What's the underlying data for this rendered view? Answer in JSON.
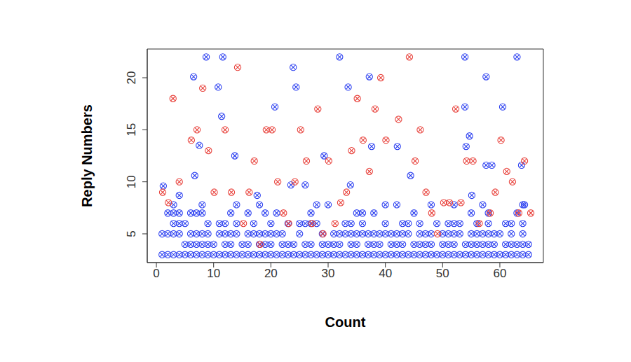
{
  "chart_data": {
    "type": "scatter",
    "x_label": "Count",
    "y_label": "Reply Numbers",
    "xlim": [
      -1.6,
      67.6
    ],
    "xticks": [
      0,
      10,
      20,
      30,
      40,
      50,
      60
    ],
    "ylim": [
      2.24,
      22.76
    ],
    "yticks": [
      5,
      10,
      15,
      20
    ],
    "grid": false,
    "marker": "circle_x",
    "series": [
      {
        "color": "#2b3ff0",
        "x": [
          1,
          2,
          3,
          4,
          5,
          6,
          7,
          8,
          9,
          10,
          11,
          12,
          13,
          14,
          15,
          16,
          17,
          18,
          19,
          20,
          21,
          22,
          23,
          24,
          25,
          26,
          27,
          28,
          29,
          30,
          31,
          32,
          33,
          34,
          35,
          36,
          37,
          38,
          39,
          40,
          41,
          42,
          43,
          44,
          45,
          46,
          47,
          48,
          49,
          50,
          51,
          52,
          53,
          54,
          55,
          56,
          57,
          58,
          59,
          60,
          61,
          62,
          63,
          64,
          65,
          5,
          6,
          7,
          8,
          9,
          10,
          12,
          13,
          15,
          16,
          18,
          19,
          20,
          22,
          23,
          24,
          26,
          27,
          29,
          30,
          31,
          32,
          34,
          35,
          37,
          38,
          39,
          41,
          42,
          43,
          45,
          46,
          47,
          48,
          50,
          51,
          52,
          54,
          55,
          56,
          57,
          58,
          59,
          61,
          62,
          63,
          64,
          65,
          1,
          2,
          3,
          4,
          6,
          7,
          8,
          9,
          11,
          12,
          13,
          14,
          16,
          17,
          18,
          19,
          20,
          21,
          22,
          25,
          29,
          31,
          32,
          33,
          34,
          35,
          36,
          37,
          38,
          39,
          40,
          41,
          42,
          43,
          44,
          46,
          47,
          48,
          50,
          51,
          52,
          53,
          55,
          56,
          57,
          58,
          59,
          60,
          62,
          64,
          3,
          4,
          5,
          9,
          11,
          12,
          14,
          17,
          20,
          23,
          25,
          26,
          27,
          28,
          33,
          34,
          36,
          40,
          43,
          44,
          46,
          49,
          51,
          52,
          53,
          56,
          58,
          61,
          62,
          64,
          2,
          3,
          4,
          6,
          7,
          8,
          13,
          16,
          19,
          21,
          27,
          35,
          36,
          38,
          45,
          55,
          58,
          63,
          3,
          8,
          14,
          18,
          28,
          30,
          40,
          42,
          48,
          52,
          57,
          64,
          1.2,
          4,
          6.5,
          6.7,
          7.5,
          8.7,
          10.8,
          11.4,
          11.6,
          13.7,
          17.6,
          20.7,
          23.5,
          23.9,
          24.4,
          26,
          29.3,
          32,
          33.5,
          33.9,
          37.2,
          37.6,
          42.1,
          44.4,
          53.9,
          53.9,
          54.1,
          54.7,
          55.1,
          57.6,
          57.6,
          58.6,
          60.5,
          63,
          63.8,
          64.3
        ],
        "values": [
          3,
          3,
          3,
          3,
          3,
          3,
          3,
          3,
          3,
          3,
          3,
          3,
          3,
          3,
          3,
          3,
          3,
          3,
          3,
          3,
          3,
          3,
          3,
          3,
          3,
          3,
          3,
          3,
          3,
          3,
          3,
          3,
          3,
          3,
          3,
          3,
          3,
          3,
          3,
          3,
          3,
          3,
          3,
          3,
          3,
          3,
          3,
          3,
          3,
          3,
          3,
          3,
          3,
          3,
          3,
          3,
          3,
          3,
          3,
          3,
          3,
          3,
          3,
          3,
          3,
          4,
          4,
          4,
          4,
          4,
          4,
          4,
          4,
          4,
          4,
          4,
          4,
          4,
          4,
          4,
          4,
          4,
          4,
          4,
          4,
          4,
          4,
          4,
          4,
          4,
          4,
          4,
          4,
          4,
          4,
          4,
          4,
          4,
          4,
          4,
          4,
          4,
          4,
          4,
          4,
          4,
          4,
          4,
          4,
          4,
          4,
          4,
          4,
          5,
          5,
          5,
          5,
          5,
          5,
          5,
          5,
          5,
          5,
          5,
          5,
          5,
          5,
          5,
          5,
          5,
          5,
          5,
          5,
          5,
          5,
          5,
          5,
          5,
          5,
          5,
          5,
          5,
          5,
          5,
          5,
          5,
          5,
          5,
          5,
          5,
          5,
          5,
          5,
          5,
          5,
          5,
          5,
          5,
          5,
          5,
          5,
          5,
          5,
          6,
          6,
          6,
          6,
          6,
          6,
          6,
          6,
          6,
          6,
          6,
          6,
          6,
          6,
          6,
          6,
          6,
          6,
          6,
          6,
          6,
          6,
          6,
          6,
          6,
          6,
          6,
          6,
          6,
          6,
          7,
          7,
          7,
          7,
          7,
          7,
          7,
          7,
          7,
          7,
          7,
          7,
          7,
          7,
          7,
          7,
          7,
          7,
          7.8,
          7.8,
          7.8,
          7.8,
          7.8,
          7.8,
          7.8,
          7.8,
          7.8,
          7.8,
          7.8,
          7.8,
          9.6,
          8.7,
          20.1,
          10.6,
          13.5,
          22,
          19.1,
          16.3,
          22,
          12.5,
          8.7,
          17.2,
          9.7,
          21,
          19.1,
          9.7,
          12.5,
          22,
          19.1,
          9.7,
          20.1,
          13.4,
          13.4,
          10.6,
          22,
          17.2,
          13.4,
          14.4,
          8.7,
          11.6,
          20.1,
          11.6,
          17.2,
          22,
          11.6,
          7.8
        ]
      },
      {
        "color": "#e8403a",
        "x": [
          1.1,
          2.1,
          2.9,
          4,
          6.1,
          7.1,
          8.1,
          9.1,
          10.1,
          12,
          13.1,
          14.2,
          15.2,
          16.2,
          17.1,
          18.1,
          19.2,
          20.2,
          21.2,
          22.2,
          23.1,
          24.2,
          25.2,
          26.2,
          27.2,
          28.2,
          29.1,
          30.1,
          31.2,
          32.2,
          33.2,
          34.1,
          35.1,
          36.1,
          37.2,
          38.2,
          39.2,
          40.1,
          42.3,
          44.2,
          45.2,
          46.1,
          47.1,
          48.1,
          49.1,
          50.2,
          51.2,
          52.3,
          53.2,
          54.2,
          55.3,
          56.4,
          58.3,
          59.2,
          60.2,
          61.2,
          62.2,
          63.3,
          64.3,
          65.4
        ],
        "values": [
          9,
          8,
          18,
          10,
          14,
          15,
          19,
          13,
          9,
          15,
          9,
          21,
          6,
          9,
          12,
          4,
          15,
          15,
          10,
          7,
          6,
          10,
          15,
          12,
          6,
          17,
          5,
          12,
          6,
          8,
          9,
          13,
          18,
          14,
          11,
          17,
          20,
          14,
          16,
          22,
          12,
          15,
          9,
          7,
          5,
          8,
          8,
          17,
          8,
          12,
          12,
          6,
          7,
          9,
          14,
          11,
          10,
          7,
          12,
          7
        ]
      }
    ]
  }
}
